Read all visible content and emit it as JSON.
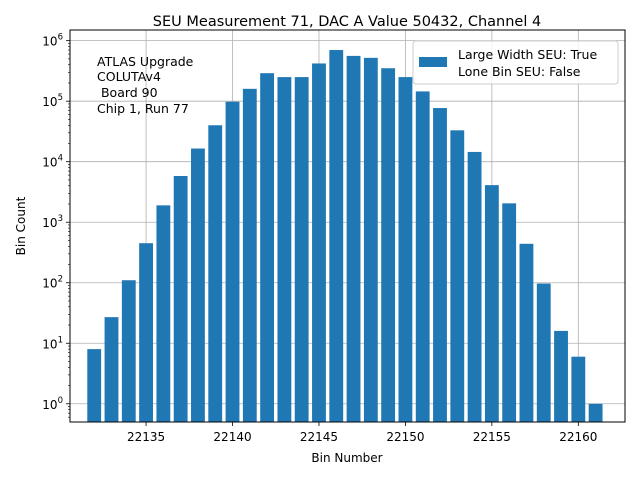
{
  "chart_data": {
    "type": "bar",
    "title": "SEU Measurement 71, DAC A Value 50432, Channel 4",
    "xlabel": "Bin Number",
    "ylabel": "Bin Count",
    "yscale": "log",
    "ylim": [
      0.5,
      1500000
    ],
    "xlim": [
      22130.6,
      22162.7
    ],
    "grid": true,
    "bar_color": "#1f77b4",
    "x": [
      22132,
      22133,
      22134,
      22135,
      22136,
      22137,
      22138,
      22139,
      22140,
      22141,
      22142,
      22143,
      22144,
      22145,
      22146,
      22147,
      22148,
      22149,
      22150,
      22151,
      22152,
      22153,
      22154,
      22155,
      22156,
      22157,
      22158,
      22159,
      22160,
      22161
    ],
    "values": [
      8,
      27,
      110,
      450,
      1900,
      5800,
      16500,
      40000,
      98000,
      160000,
      290000,
      250000,
      250000,
      420000,
      700000,
      560000,
      520000,
      350000,
      250000,
      145000,
      77000,
      33000,
      14500,
      4100,
      2050,
      440,
      97,
      16,
      6,
      1
    ],
    "x_ticks": [
      22135,
      22140,
      22145,
      22150,
      22155,
      22160
    ],
    "x_tick_labels": [
      "22135",
      "22140",
      "22145",
      "22150",
      "22155",
      "22160"
    ],
    "y_ticks": [
      1,
      10,
      100,
      1000,
      10000,
      100000,
      1000000
    ],
    "y_tick_labels": [
      {
        "base": "10",
        "exp": "0"
      },
      {
        "base": "10",
        "exp": "1"
      },
      {
        "base": "10",
        "exp": "2"
      },
      {
        "base": "10",
        "exp": "3"
      },
      {
        "base": "10",
        "exp": "4"
      },
      {
        "base": "10",
        "exp": "5"
      },
      {
        "base": "10",
        "exp": "6"
      }
    ],
    "annotation_lines": [
      "ATLAS Upgrade",
      "COLUTAv4",
      " Board 90",
      "Chip 1, Run 77"
    ],
    "legend": {
      "position": "top-right",
      "entries": [
        "Large Width SEU: True",
        "Lone Bin SEU: False"
      ]
    }
  }
}
